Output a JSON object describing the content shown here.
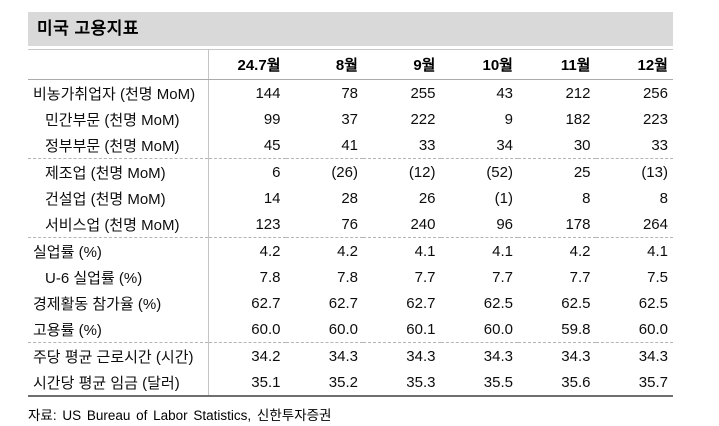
{
  "title": "미국 고용지표",
  "table": {
    "columns": [
      "24.7월",
      "8월",
      "9월",
      "10월",
      "11월",
      "12월"
    ],
    "rows": [
      {
        "label": "비농가취업자 (천명 MoM)",
        "indent": false,
        "values": [
          "144",
          "78",
          "255",
          "43",
          "212",
          "256"
        ]
      },
      {
        "label": "민간부문 (천명 MoM)",
        "indent": true,
        "values": [
          "99",
          "37",
          "222",
          "9",
          "182",
          "223"
        ]
      },
      {
        "label": "정부부문 (천명 MoM)",
        "indent": true,
        "separator_after": "dashed",
        "values": [
          "45",
          "41",
          "33",
          "34",
          "30",
          "33"
        ]
      },
      {
        "label": "제조업 (천명 MoM)",
        "indent": true,
        "values": [
          "6",
          "(26)",
          "(12)",
          "(52)",
          "25",
          "(13)"
        ]
      },
      {
        "label": "건설업 (천명 MoM)",
        "indent": true,
        "values": [
          "14",
          "28",
          "26",
          "(1)",
          "8",
          "8"
        ]
      },
      {
        "label": "서비스업 (천명 MoM)",
        "indent": true,
        "separator_after": "dashed",
        "values": [
          "123",
          "76",
          "240",
          "96",
          "178",
          "264"
        ]
      },
      {
        "label": "실업률 (%)",
        "indent": false,
        "values": [
          "4.2",
          "4.2",
          "4.1",
          "4.1",
          "4.2",
          "4.1"
        ]
      },
      {
        "label": "U-6 실업률 (%)",
        "indent": true,
        "values": [
          "7.8",
          "7.8",
          "7.7",
          "7.7",
          "7.7",
          "7.5"
        ]
      },
      {
        "label": "경제활동 참가율 (%)",
        "indent": false,
        "values": [
          "62.7",
          "62.7",
          "62.7",
          "62.5",
          "62.5",
          "62.5"
        ]
      },
      {
        "label": "고용률 (%)",
        "indent": false,
        "separator_after": "dashed",
        "values": [
          "60.0",
          "60.0",
          "60.1",
          "60.0",
          "59.8",
          "60.0"
        ]
      },
      {
        "label": "주당 평균 근로시간 (시간)",
        "indent": false,
        "values": [
          "34.2",
          "34.3",
          "34.3",
          "34.3",
          "34.3",
          "34.3"
        ]
      },
      {
        "label": "시간당 평균 임금 (달러)",
        "indent": false,
        "values": [
          "35.1",
          "35.2",
          "35.3",
          "35.5",
          "35.6",
          "35.7"
        ]
      }
    ]
  },
  "source": "자료: US Bureau of Labor Statistics, 신한투자증권",
  "colors": {
    "title_background": "#d9d9d9",
    "text": "#0d0d0d",
    "line_light": "#c4c4c4",
    "line_header": "#ababab",
    "line_dashed": "#b5b5b5",
    "line_bottom": "#6f6f6f"
  }
}
